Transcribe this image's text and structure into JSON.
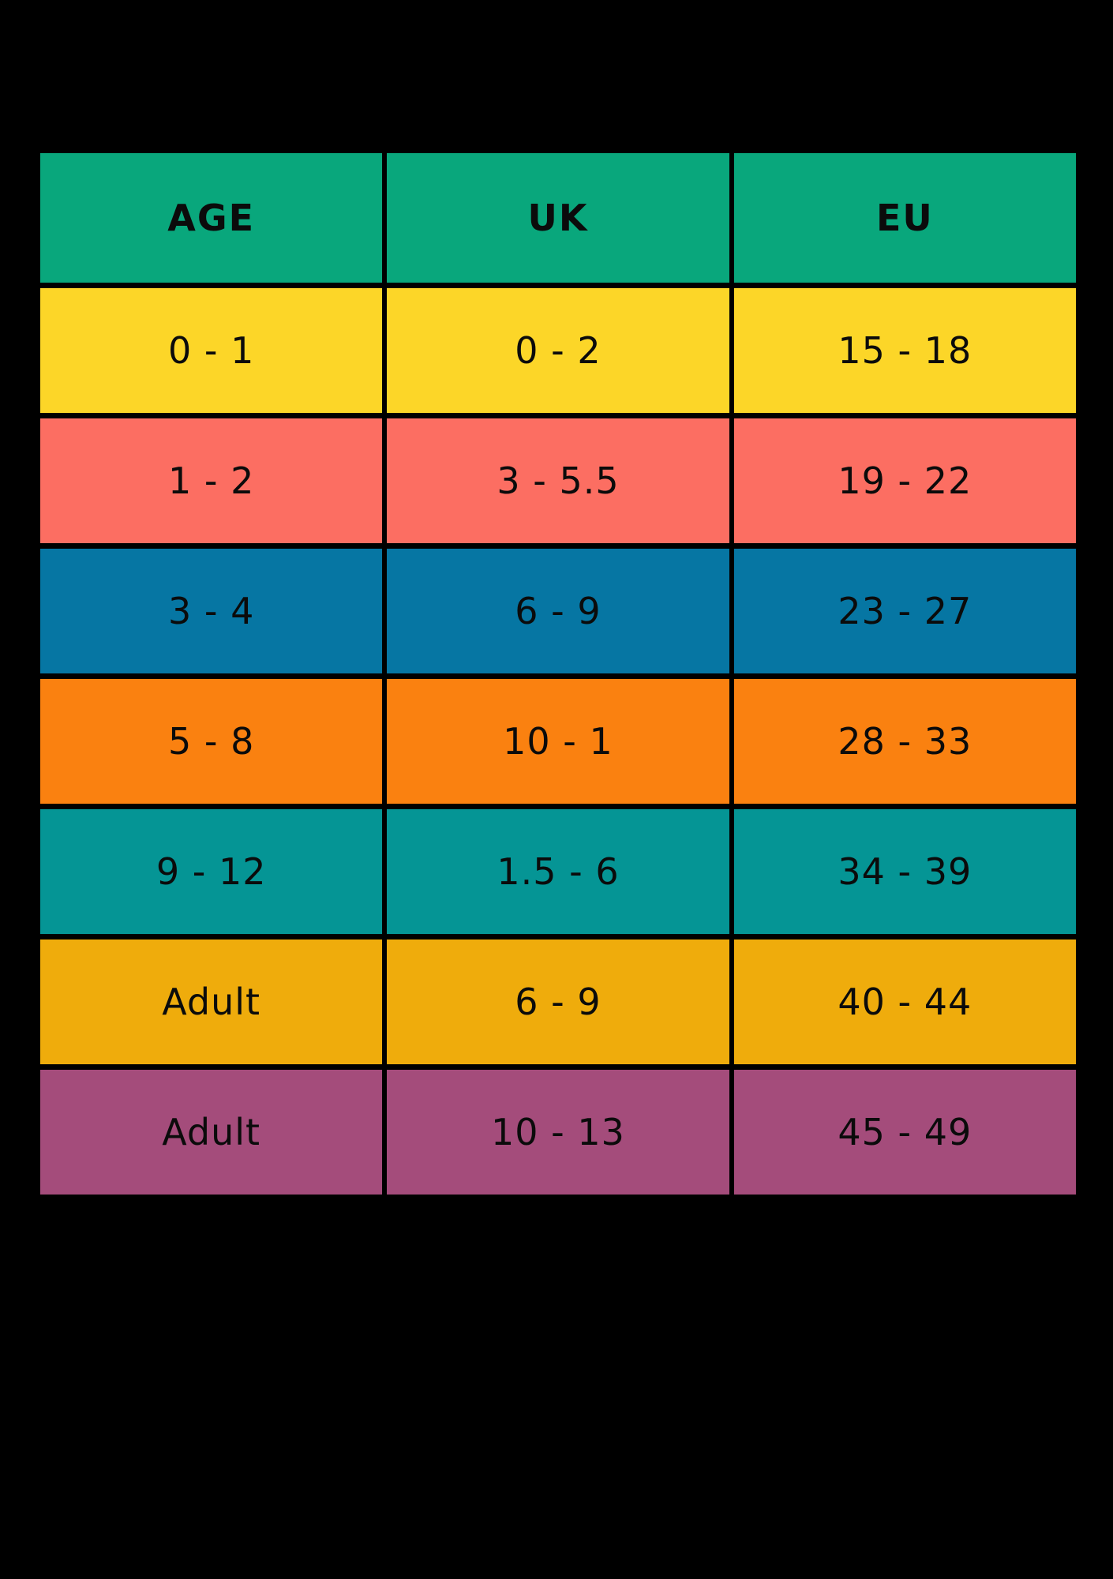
{
  "page": {
    "background_color": "#000000",
    "text_color": "#0b0b0b"
  },
  "table": {
    "header_color": "#09a77c",
    "columns": [
      {
        "label": "AGE"
      },
      {
        "label": "UK"
      },
      {
        "label": "EU"
      }
    ],
    "rows": [
      {
        "age": "0 - 1",
        "uk": "0 - 2",
        "eu": "15 - 18",
        "color": "#fcd628"
      },
      {
        "age": "1 - 2",
        "uk": "3 - 5.5",
        "eu": "19 - 22",
        "color": "#fc6e62"
      },
      {
        "age": "3 - 4",
        "uk": "6 - 9",
        "eu": "23 - 27",
        "color": "#0676a3"
      },
      {
        "age": "5 - 8",
        "uk": "10 - 1",
        "eu": "28 - 33",
        "color": "#fa8110"
      },
      {
        "age": "9 - 12",
        "uk": "1.5 - 6",
        "eu": "34 - 39",
        "color": "#059595"
      },
      {
        "age": "Adult",
        "uk": "6 - 9",
        "eu": "40 - 44",
        "color": "#efac0c"
      },
      {
        "age": "Adult",
        "uk": "10 - 13",
        "eu": "45 - 49",
        "color": "#a44c7b"
      }
    ]
  },
  "chart_data": {
    "type": "table",
    "title": "",
    "columns": [
      "AGE",
      "UK",
      "EU"
    ],
    "rows": [
      [
        "0 - 1",
        "0 - 2",
        "15 - 18"
      ],
      [
        "1 - 2",
        "3 - 5.5",
        "19 - 22"
      ],
      [
        "3 - 4",
        "6 - 9",
        "23 - 27"
      ],
      [
        "5 - 8",
        "10 - 1",
        "28 - 33"
      ],
      [
        "9 - 12",
        "1.5 - 6",
        "34 - 39"
      ],
      [
        "Adult",
        "6 - 9",
        "40 - 44"
      ],
      [
        "Adult",
        "10 - 13",
        "45 - 49"
      ]
    ],
    "row_colors": [
      "#fcd628",
      "#fc6e62",
      "#0676a3",
      "#fa8110",
      "#059595",
      "#efac0c",
      "#a44c7b"
    ],
    "header_color": "#09a77c",
    "layout_hints": "black page background, black gridline gaps between solid colored cells, all text centered and black"
  }
}
